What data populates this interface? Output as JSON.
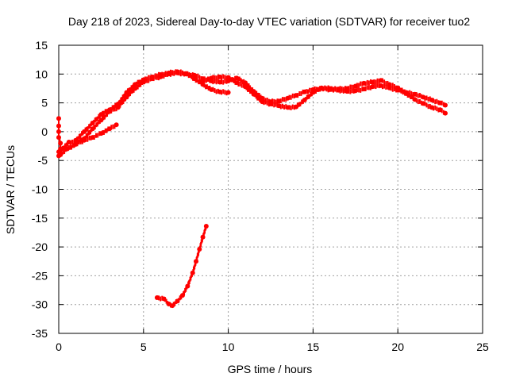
{
  "chart_data": {
    "type": "scatter",
    "title": "Day 218 of 2023, Sidereal Day-to-day VTEC variation (SDTVAR) for receiver tuo2",
    "xlabel": "GPS time / hours",
    "ylabel": "SDTVAR / TECUs",
    "xlim": [
      0,
      25
    ],
    "ylim": [
      -35,
      15
    ],
    "xticks": [
      0,
      5,
      10,
      15,
      20,
      25
    ],
    "yticks": [
      -35,
      -30,
      -25,
      -20,
      -15,
      -10,
      -5,
      0,
      5,
      10,
      15
    ],
    "grid": true,
    "marker_color": "#ff0000",
    "series": [
      {
        "name": "track-a",
        "points": [
          [
            0.0,
            -3.5
          ],
          [
            0.3,
            -2.8
          ],
          [
            0.6,
            -1.8
          ],
          [
            1.0,
            -2.0
          ],
          [
            1.5,
            -1.2
          ],
          [
            2.0,
            0.5
          ],
          [
            2.5,
            2.0
          ],
          [
            3.0,
            3.5
          ],
          [
            3.5,
            4.2
          ],
          [
            4.0,
            6.0
          ],
          [
            4.5,
            7.5
          ],
          [
            5.0,
            8.6
          ],
          [
            5.5,
            9.2
          ],
          [
            6.0,
            9.5
          ],
          [
            6.5,
            10.0
          ],
          [
            7.0,
            10.2
          ],
          [
            7.5,
            10.0
          ],
          [
            8.0,
            9.8
          ],
          [
            8.5,
            9.2
          ],
          [
            9.0,
            8.8
          ],
          [
            9.5,
            8.6
          ],
          [
            10.0,
            8.8
          ],
          [
            10.5,
            9.3
          ],
          [
            11.0,
            8.5
          ],
          [
            11.5,
            7.0
          ],
          [
            12.0,
            5.8
          ],
          [
            12.5,
            5.2
          ],
          [
            13.0,
            5.3
          ],
          [
            13.5,
            5.8
          ],
          [
            14.0,
            6.3
          ],
          [
            14.5,
            6.9
          ],
          [
            15.0,
            7.3
          ],
          [
            15.5,
            7.5
          ],
          [
            16.0,
            7.3
          ],
          [
            16.5,
            7.2
          ],
          [
            17.0,
            7.0
          ],
          [
            17.5,
            7.1
          ],
          [
            18.0,
            7.4
          ],
          [
            18.5,
            7.8
          ],
          [
            19.0,
            8.0
          ],
          [
            19.5,
            7.6
          ],
          [
            20.0,
            7.2
          ],
          [
            20.5,
            6.8
          ],
          [
            21.0,
            6.5
          ],
          [
            21.5,
            6.0
          ],
          [
            22.0,
            5.5
          ],
          [
            22.5,
            5.0
          ],
          [
            22.8,
            4.6
          ]
        ]
      },
      {
        "name": "track-b",
        "points": [
          [
            0.0,
            -4.2
          ],
          [
            0.5,
            -3.0
          ],
          [
            1.0,
            -2.2
          ],
          [
            1.5,
            -1.5
          ],
          [
            2.0,
            -1.0
          ],
          [
            2.5,
            -0.3
          ],
          [
            3.0,
            0.5
          ],
          [
            3.4,
            1.2
          ]
        ]
      },
      {
        "name": "track-c",
        "points": [
          [
            1.0,
            -1.5
          ],
          [
            1.5,
            0.0
          ],
          [
            2.0,
            1.5
          ],
          [
            2.5,
            3.0
          ],
          [
            3.0,
            3.8
          ],
          [
            3.5,
            4.8
          ],
          [
            4.0,
            6.8
          ],
          [
            4.5,
            8.2
          ],
          [
            5.0,
            9.0
          ],
          [
            5.5,
            9.5
          ],
          [
            6.0,
            9.9
          ],
          [
            6.5,
            10.2
          ],
          [
            7.0,
            10.4
          ],
          [
            7.5,
            10.1
          ],
          [
            8.0,
            9.2
          ],
          [
            8.5,
            8.2
          ],
          [
            9.0,
            7.3
          ],
          [
            9.5,
            6.9
          ],
          [
            10.0,
            6.8
          ]
        ]
      },
      {
        "name": "track-d",
        "points": [
          [
            8.5,
            8.8
          ],
          [
            9.0,
            9.3
          ],
          [
            9.5,
            9.5
          ],
          [
            10.0,
            9.4
          ],
          [
            10.5,
            8.5
          ],
          [
            11.0,
            7.8
          ],
          [
            11.5,
            6.5
          ],
          [
            12.0,
            5.2
          ],
          [
            12.5,
            4.8
          ],
          [
            13.0,
            4.5
          ],
          [
            13.5,
            4.2
          ],
          [
            14.0,
            4.3
          ],
          [
            14.5,
            5.5
          ],
          [
            15.0,
            6.8
          ],
          [
            15.5,
            7.6
          ],
          [
            16.0,
            7.5
          ],
          [
            16.5,
            7.4
          ],
          [
            17.0,
            7.5
          ],
          [
            17.5,
            7.9
          ],
          [
            18.0,
            8.4
          ],
          [
            18.5,
            8.6
          ],
          [
            19.0,
            8.9
          ],
          [
            19.5,
            8.2
          ],
          [
            20.0,
            7.6
          ],
          [
            20.5,
            6.6
          ],
          [
            21.0,
            5.6
          ],
          [
            21.5,
            4.9
          ],
          [
            22.0,
            4.2
          ],
          [
            22.5,
            3.8
          ],
          [
            22.8,
            3.2
          ]
        ]
      },
      {
        "name": "track-e",
        "points": [
          [
            5.8,
            -28.8
          ],
          [
            6.2,
            -29.0
          ],
          [
            6.5,
            -29.9
          ],
          [
            6.7,
            -30.2
          ],
          [
            7.0,
            -29.4
          ],
          [
            7.3,
            -28.4
          ],
          [
            7.6,
            -26.8
          ],
          [
            7.9,
            -24.5
          ],
          [
            8.1,
            -22.5
          ],
          [
            8.3,
            -20.4
          ],
          [
            8.5,
            -18.3
          ],
          [
            8.7,
            -16.4
          ]
        ]
      },
      {
        "name": "track-f",
        "points": [
          [
            0.0,
            2.3
          ],
          [
            0.0,
            1.0
          ],
          [
            0.0,
            0.0
          ],
          [
            0.0,
            -1.0
          ],
          [
            0.1,
            -2.0
          ],
          [
            0.1,
            -3.0
          ],
          [
            0.1,
            -4.0
          ]
        ]
      }
    ]
  }
}
